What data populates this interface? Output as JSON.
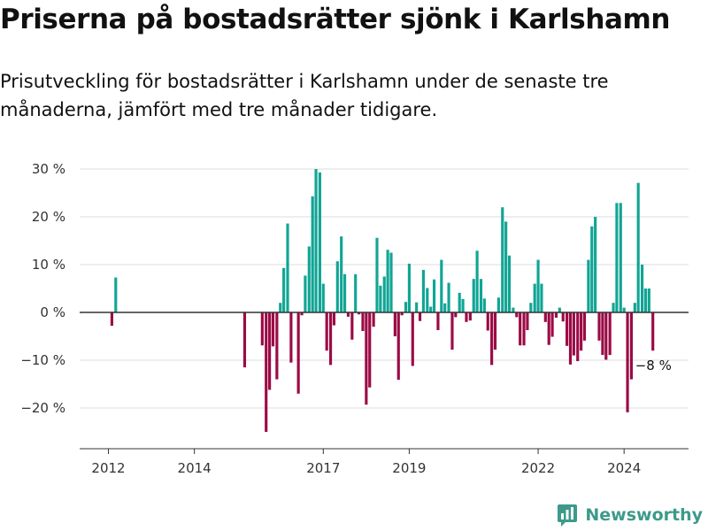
{
  "title": "Priserna på bostadsrätter sjönk i Karlshamn",
  "subtitle": "Prisutveckling för bostadsrätter i Karlshamn under de senaste tre månaderna, jämfört med tre månader tidigare.",
  "brand": "Newsworthy",
  "colors": {
    "positive": "#11a595",
    "negative": "#9b0a45",
    "grid": "#dddddd",
    "baseline": "#333333",
    "brand": "#3d9a8b"
  },
  "chart_data": {
    "type": "bar",
    "annotation": "−8 %",
    "y_ticks": [
      {
        "value": 30,
        "label": "30 %"
      },
      {
        "value": 20,
        "label": "20 %"
      },
      {
        "value": 10,
        "label": "10 %"
      },
      {
        "value": 0,
        "label": "0 %"
      },
      {
        "value": -10,
        "label": "−10 %"
      },
      {
        "value": -20,
        "label": "−20 %"
      }
    ],
    "x_ticks": [
      {
        "value": 2012.0,
        "label": "2012"
      },
      {
        "value": 2014.0,
        "label": "2014"
      },
      {
        "value": 2017.0,
        "label": "2017"
      },
      {
        "value": 2019.0,
        "label": "2019"
      },
      {
        "value": 2022.0,
        "label": "2022"
      },
      {
        "value": 2024.0,
        "label": "2024"
      }
    ],
    "xlim": [
      2011.33,
      2025.5
    ],
    "ylim": [
      -28,
      32
    ],
    "x": [
      2012.08,
      2012.17,
      2015.17,
      2015.58,
      2015.67,
      2015.75,
      2015.83,
      2015.92,
      2016.0,
      2016.08,
      2016.17,
      2016.25,
      2016.33,
      2016.42,
      2016.5,
      2016.58,
      2016.67,
      2016.75,
      2016.83,
      2016.92,
      2017.0,
      2017.08,
      2017.17,
      2017.25,
      2017.33,
      2017.42,
      2017.5,
      2017.58,
      2017.67,
      2017.75,
      2017.83,
      2017.92,
      2018.0,
      2018.08,
      2018.17,
      2018.25,
      2018.33,
      2018.42,
      2018.5,
      2018.58,
      2018.67,
      2018.75,
      2018.83,
      2018.92,
      2019.0,
      2019.08,
      2019.17,
      2019.25,
      2019.33,
      2019.42,
      2019.5,
      2019.58,
      2019.67,
      2019.75,
      2019.83,
      2019.92,
      2020.0,
      2020.08,
      2020.17,
      2020.25,
      2020.33,
      2020.42,
      2020.5,
      2020.58,
      2020.67,
      2020.75,
      2020.83,
      2020.92,
      2021.0,
      2021.08,
      2021.17,
      2021.25,
      2021.33,
      2021.42,
      2021.5,
      2021.58,
      2021.67,
      2021.75,
      2021.83,
      2021.92,
      2022.0,
      2022.08,
      2022.17,
      2022.25,
      2022.33,
      2022.42,
      2022.5,
      2022.58,
      2022.67,
      2022.75,
      2022.83,
      2022.92,
      2023.0,
      2023.08,
      2023.17,
      2023.25,
      2023.33,
      2023.42,
      2023.5,
      2023.58,
      2023.67,
      2023.75,
      2023.83,
      2023.92,
      2024.0,
      2024.08,
      2024.17,
      2024.25,
      2024.33,
      2024.42,
      2024.5,
      2024.58,
      2024.67
    ],
    "series": [
      {
        "values": [
          -2.8,
          7.3,
          -11.5,
          -6.9,
          -25.0,
          -16.2,
          -7.1,
          -14.0,
          2.0,
          9.3,
          18.6,
          -10.5,
          0,
          -17.0,
          -0.6,
          7.7,
          13.8,
          24.3,
          30.0,
          29.3,
          6.0,
          -8.0,
          -11.0,
          -2.7,
          10.7,
          15.9,
          8.0,
          -0.9,
          -5.7,
          8.0,
          -0.4,
          -3.9,
          -19.3,
          -15.7,
          -3.0,
          15.6,
          5.6,
          7.5,
          13.1,
          12.5,
          -5.0,
          -14.1,
          -0.6,
          2.2,
          10.2,
          -11.2,
          2.1,
          -1.8,
          8.9,
          5.1,
          1.2,
          6.9,
          -3.7,
          11.0,
          1.9,
          6.2,
          -7.8,
          -1.0,
          4.1,
          2.8,
          -2.0,
          -1.7,
          7.0,
          12.9,
          7.0,
          2.9,
          -3.8,
          -11.0,
          -7.8,
          3.1,
          22.0,
          19.0,
          11.9,
          1.0,
          -1.0,
          -6.9,
          -6.9,
          -3.7,
          2.0,
          6.0,
          11.0,
          6.0,
          -2.0,
          -6.8,
          -5.1,
          -1.1,
          1.0,
          -1.9,
          -7.0,
          -10.9,
          -9.0,
          -10.2,
          -8.0,
          -5.9,
          11.0,
          18.0,
          20.0,
          -5.9,
          -8.9,
          -9.9,
          -8.9,
          2.0,
          22.9,
          22.9,
          1.0,
          -20.9,
          -14.0,
          2.0,
          27.1,
          10.0,
          5.0,
          5.0,
          -8.0
        ]
      }
    ]
  }
}
